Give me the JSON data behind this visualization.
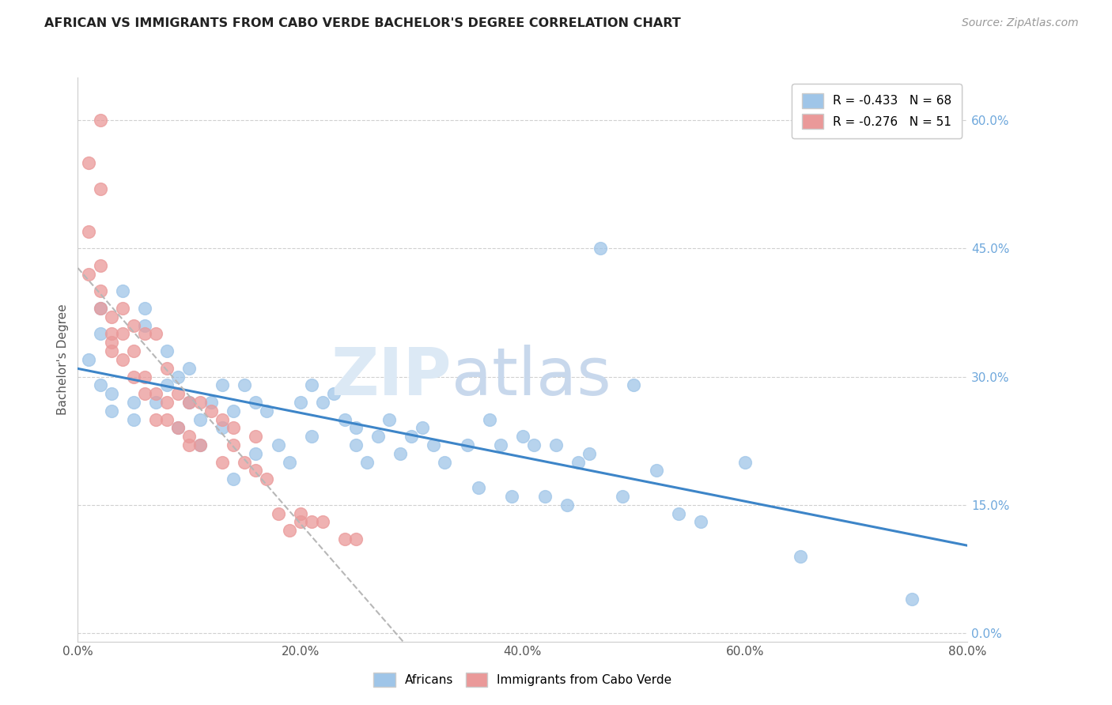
{
  "title": "AFRICAN VS IMMIGRANTS FROM CABO VERDE BACHELOR'S DEGREE CORRELATION CHART",
  "source": "Source: ZipAtlas.com",
  "ylabel": "Bachelor's Degree",
  "xlabel_ticks": [
    "0.0%",
    "20.0%",
    "40.0%",
    "60.0%",
    "80.0%"
  ],
  "xlabel_vals": [
    0,
    20,
    40,
    60,
    80
  ],
  "ylabel_ticks": [
    "0.0%",
    "15.0%",
    "30.0%",
    "45.0%",
    "60.0%"
  ],
  "ylabel_vals": [
    0,
    15,
    30,
    45,
    60
  ],
  "xlim": [
    0,
    80
  ],
  "ylim": [
    -1,
    65
  ],
  "legend_r1": "R = -0.433   N = 68",
  "legend_r2": "R = -0.276   N = 51",
  "legend_label1": "Africans",
  "legend_label2": "Immigrants from Cabo Verde",
  "color_blue": "#9fc5e8",
  "color_pink": "#ea9999",
  "color_blue_line": "#3d85c8",
  "color_pink_line": "#b7b7b7",
  "color_right_axis": "#6fa8dc",
  "africans_x": [
    1,
    2,
    2,
    2,
    3,
    3,
    4,
    5,
    5,
    6,
    6,
    7,
    8,
    8,
    9,
    9,
    10,
    10,
    11,
    11,
    12,
    13,
    13,
    14,
    14,
    15,
    16,
    16,
    17,
    18,
    19,
    20,
    21,
    21,
    22,
    23,
    24,
    25,
    25,
    26,
    27,
    28,
    29,
    30,
    31,
    32,
    33,
    35,
    36,
    37,
    38,
    39,
    40,
    41,
    42,
    43,
    44,
    45,
    46,
    47,
    49,
    50,
    52,
    54,
    56,
    60,
    65,
    75
  ],
  "africans_y": [
    32,
    29,
    35,
    38,
    26,
    28,
    40,
    25,
    27,
    36,
    38,
    27,
    33,
    29,
    30,
    24,
    31,
    27,
    25,
    22,
    27,
    29,
    24,
    26,
    18,
    29,
    27,
    21,
    26,
    22,
    20,
    27,
    29,
    23,
    27,
    28,
    25,
    24,
    22,
    20,
    23,
    25,
    21,
    23,
    24,
    22,
    20,
    22,
    17,
    25,
    22,
    16,
    23,
    22,
    16,
    22,
    15,
    20,
    21,
    45,
    16,
    29,
    19,
    14,
    13,
    20,
    9,
    4
  ],
  "caboverde_x": [
    1,
    1,
    1,
    2,
    2,
    2,
    2,
    3,
    3,
    3,
    3,
    4,
    4,
    4,
    5,
    5,
    5,
    6,
    6,
    6,
    7,
    7,
    7,
    8,
    8,
    8,
    9,
    9,
    10,
    10,
    10,
    11,
    11,
    12,
    13,
    13,
    14,
    14,
    15,
    16,
    16,
    17,
    18,
    19,
    20,
    20,
    21,
    22,
    24,
    25,
    2
  ],
  "caboverde_y": [
    55,
    47,
    42,
    60,
    52,
    43,
    38,
    37,
    35,
    34,
    33,
    38,
    35,
    32,
    36,
    33,
    30,
    35,
    30,
    28,
    35,
    28,
    25,
    31,
    27,
    25,
    28,
    24,
    27,
    23,
    22,
    27,
    22,
    26,
    25,
    20,
    24,
    22,
    20,
    23,
    19,
    18,
    14,
    12,
    14,
    13,
    13,
    13,
    11,
    11,
    40
  ]
}
